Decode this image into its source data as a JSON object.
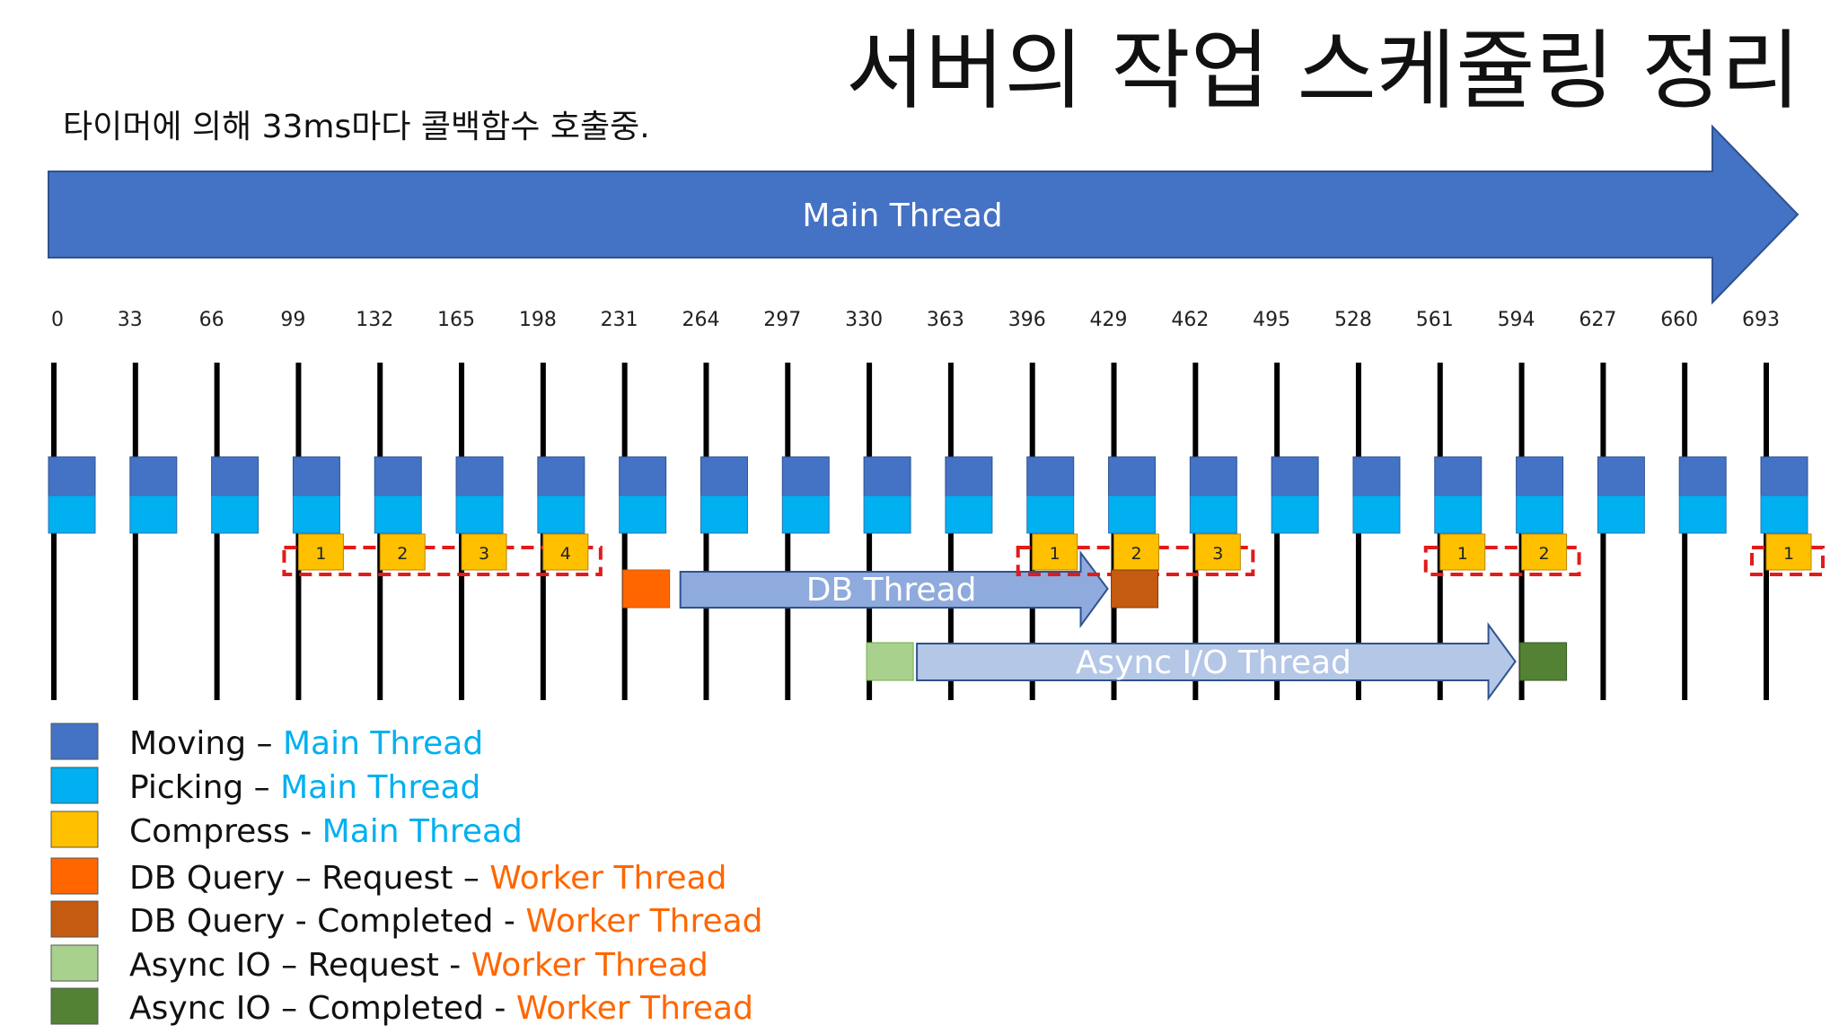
{
  "title": "서버의 작업 스케쥴링 정리",
  "subtitle": "타이머에 의해 33ms마다 콜백함수 호출중.",
  "main_thread_label": "Main Thread",
  "db_thread_label": "DB Thread",
  "async_thread_label": "Async I/O Thread",
  "ticks": [
    "0",
    "33",
    "66",
    "99",
    "132",
    "165",
    "198",
    "231",
    "264",
    "297",
    "330",
    "363",
    "396",
    "429",
    "462",
    "495",
    "528",
    "561",
    "594",
    "627",
    "660",
    "693"
  ],
  "compress_groups": [
    {
      "labels": [
        "1",
        "2",
        "3",
        "4"
      ],
      "start_tick": 3
    },
    {
      "labels": [
        "1",
        "2",
        "3"
      ],
      "start_tick": 12
    },
    {
      "labels": [
        "1",
        "2"
      ],
      "start_tick": 17
    },
    {
      "labels": [
        "1"
      ],
      "start_tick": 21
    }
  ],
  "db_query": {
    "request_tick": 7,
    "completed_tick": 13
  },
  "async_io": {
    "request_tick": 10,
    "completed_tick": 18
  },
  "colors": {
    "moving": "#4472c4",
    "picking": "#00b0f0",
    "compress": "#ffc000",
    "db_request": "#ff6600",
    "db_completed": "#c55a11",
    "async_request": "#a9d18e",
    "async_completed": "#548235",
    "main_arrow": "#4472c4",
    "db_arrow": "#8faadc",
    "async_arrow": "#b4c7e7",
    "dashed_box": "#e21b1b",
    "main_text": "#00b0f0",
    "worker_text": "#ff6600"
  },
  "legend": [
    {
      "key": "moving",
      "label": "Moving – ",
      "thread": "Main Thread",
      "thread_kind": "main"
    },
    {
      "key": "picking",
      "label": "Picking – ",
      "thread": "Main Thread",
      "thread_kind": "main"
    },
    {
      "key": "compress",
      "label": "Compress - ",
      "thread": "Main Thread",
      "thread_kind": "main"
    },
    {
      "key": "db_request",
      "label": "DB Query – Request – ",
      "thread": "Worker Thread",
      "thread_kind": "worker"
    },
    {
      "key": "db_completed",
      "label": "DB Query - Completed - ",
      "thread": "Worker Thread",
      "thread_kind": "worker"
    },
    {
      "key": "async_request",
      "label": "Async IO – Request -  ",
      "thread": "Worker Thread",
      "thread_kind": "worker"
    },
    {
      "key": "async_completed",
      "label": "Async IO – Completed -  ",
      "thread": "Worker Thread",
      "thread_kind": "worker"
    }
  ]
}
